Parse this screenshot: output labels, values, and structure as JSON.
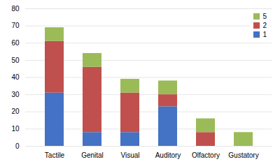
{
  "chart_data": {
    "type": "bar",
    "stacked": true,
    "categories": [
      "Tactile",
      "Genital",
      "Visual",
      "Auditory",
      "Olfactory",
      "Gustatory"
    ],
    "series": [
      {
        "name": "1",
        "color": "#4472C4",
        "values": [
          31,
          8,
          8,
          23,
          0,
          0
        ]
      },
      {
        "name": "2",
        "color": "#C0504D",
        "values": [
          30,
          38,
          23,
          7,
          8,
          0
        ]
      },
      {
        "name": "5",
        "color": "#9BBB59",
        "values": [
          8,
          8,
          8,
          8,
          8,
          8
        ]
      }
    ],
    "ylim": [
      0,
      80
    ],
    "yticks": [
      0,
      10,
      20,
      30,
      40,
      50,
      60,
      70,
      80
    ],
    "grid": true,
    "legend": "upper right"
  }
}
